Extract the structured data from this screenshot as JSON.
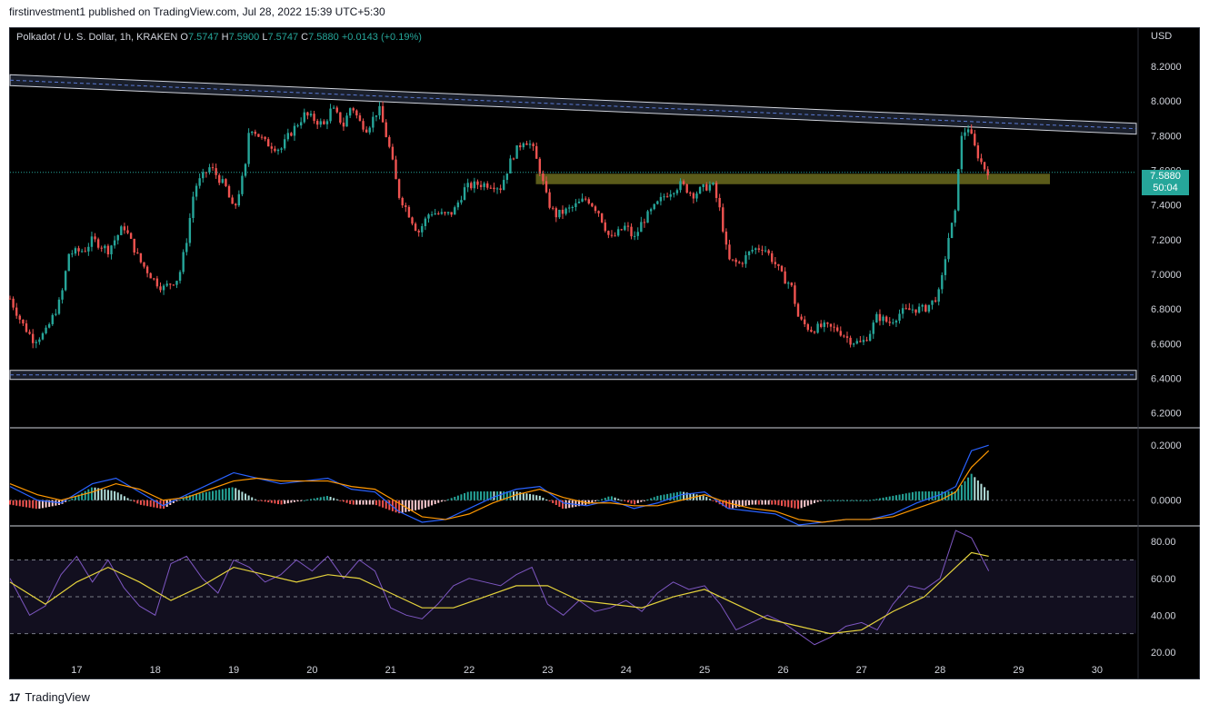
{
  "published": "firstinvestment1 published on TradingView.com, Jul 28, 2022 15:39 UTC+5:30",
  "brand": "TradingView",
  "legend": {
    "symbol": "Polkadot / U. S. Dollar, 1h, KRAKEN",
    "o_label": "O",
    "o": "7.5747",
    "h_label": "H",
    "h": "7.5900",
    "l_label": "L",
    "l": "7.5747",
    "c_label": "C",
    "c": "7.5880",
    "change": "+0.0143 (+0.19%)"
  },
  "currency": "USD",
  "price_tag": {
    "price": "7.5880",
    "countdown": "50:04"
  },
  "colors": {
    "up": "#26a69a",
    "down": "#ef5350",
    "macd": "#2962ff",
    "signal": "#ff9800",
    "rsi": "#7e57c2",
    "rsi_ma": "#e5d33c",
    "zone": "#6b6b1e"
  },
  "chart_data": [
    {
      "type": "candlestick",
      "title": "Polkadot / U. S. Dollar, 1h, KRAKEN",
      "x_ticks": [
        "17",
        "18",
        "19",
        "20",
        "21",
        "22",
        "23",
        "24",
        "25",
        "26",
        "27",
        "28",
        "29",
        "30"
      ],
      "y_ticks": [
        "8.2000",
        "8.0000",
        "7.8000",
        "7.6000",
        "7.4000",
        "7.2000",
        "7.0000",
        "6.8000",
        "6.6000",
        "6.4000",
        "6.2000"
      ],
      "ylim": [
        6.12,
        8.42
      ],
      "xlim": [
        16.15,
        30.5
      ],
      "close_path": [
        [
          16.15,
          6.86
        ],
        [
          16.3,
          6.72
        ],
        [
          16.45,
          6.62
        ],
        [
          16.6,
          6.66
        ],
        [
          16.8,
          6.86
        ],
        [
          16.9,
          7.12
        ],
        [
          17.1,
          7.14
        ],
        [
          17.2,
          7.2
        ],
        [
          17.4,
          7.14
        ],
        [
          17.6,
          7.28
        ],
        [
          17.8,
          7.08
        ],
        [
          17.9,
          7.02
        ],
        [
          18.0,
          6.96
        ],
        [
          18.1,
          6.92
        ],
        [
          18.3,
          6.98
        ],
        [
          18.4,
          7.2
        ],
        [
          18.5,
          7.5
        ],
        [
          18.7,
          7.62
        ],
        [
          18.9,
          7.5
        ],
        [
          19.0,
          7.36
        ],
        [
          19.15,
          7.62
        ],
        [
          19.2,
          7.86
        ],
        [
          19.4,
          7.76
        ],
        [
          19.6,
          7.72
        ],
        [
          19.7,
          7.8
        ],
        [
          19.9,
          7.92
        ],
        [
          20.0,
          7.9
        ],
        [
          20.15,
          7.86
        ],
        [
          20.25,
          7.96
        ],
        [
          20.4,
          7.86
        ],
        [
          20.5,
          7.98
        ],
        [
          20.6,
          7.88
        ],
        [
          20.7,
          7.84
        ],
        [
          20.85,
          7.96
        ],
        [
          21.0,
          7.7
        ],
        [
          21.1,
          7.46
        ],
        [
          21.2,
          7.38
        ],
        [
          21.35,
          7.24
        ],
        [
          21.5,
          7.36
        ],
        [
          21.7,
          7.34
        ],
        [
          21.8,
          7.36
        ],
        [
          21.95,
          7.5
        ],
        [
          22.1,
          7.52
        ],
        [
          22.3,
          7.52
        ],
        [
          22.4,
          7.5
        ],
        [
          22.55,
          7.68
        ],
        [
          22.7,
          7.78
        ],
        [
          22.8,
          7.74
        ],
        [
          22.9,
          7.6
        ],
        [
          23.0,
          7.42
        ],
        [
          23.1,
          7.34
        ],
        [
          23.3,
          7.38
        ],
        [
          23.5,
          7.44
        ],
        [
          23.65,
          7.36
        ],
        [
          23.8,
          7.2
        ],
        [
          24.0,
          7.28
        ],
        [
          24.1,
          7.2
        ],
        [
          24.2,
          7.3
        ],
        [
          24.35,
          7.38
        ],
        [
          24.5,
          7.46
        ],
        [
          24.7,
          7.52
        ],
        [
          24.85,
          7.46
        ],
        [
          25.0,
          7.5
        ],
        [
          25.1,
          7.52
        ],
        [
          25.2,
          7.36
        ],
        [
          25.3,
          7.08
        ],
        [
          25.45,
          7.06
        ],
        [
          25.6,
          7.14
        ],
        [
          25.75,
          7.16
        ],
        [
          25.9,
          7.06
        ],
        [
          26.0,
          6.98
        ],
        [
          26.1,
          6.94
        ],
        [
          26.2,
          6.74
        ],
        [
          26.35,
          6.68
        ],
        [
          26.5,
          6.7
        ],
        [
          26.7,
          6.68
        ],
        [
          26.85,
          6.62
        ],
        [
          27.0,
          6.6
        ],
        [
          27.1,
          6.66
        ],
        [
          27.2,
          6.76
        ],
        [
          27.35,
          6.72
        ],
        [
          27.5,
          6.78
        ],
        [
          27.65,
          6.8
        ],
        [
          27.8,
          6.8
        ],
        [
          27.9,
          6.84
        ],
        [
          28.0,
          6.9
        ],
        [
          28.1,
          7.2
        ],
        [
          28.2,
          7.36
        ],
        [
          28.25,
          7.76
        ],
        [
          28.35,
          7.86
        ],
        [
          28.45,
          7.72
        ],
        [
          28.55,
          7.62
        ],
        [
          28.62,
          7.59
        ]
      ],
      "support_zone": [
        7.52,
        7.58
      ],
      "support_zone_x": [
        22.85,
        29.4
      ],
      "descending_channel": {
        "start": [
          16.15,
          8.12
        ],
        "end": [
          30.5,
          7.84
        ]
      },
      "horizontal_support": 6.42,
      "last_price": 7.588
    },
    {
      "type": "line",
      "indicator": "MACD",
      "y_ticks": [
        "0.2000",
        "0.0000"
      ],
      "ylim": [
        -0.09,
        0.26
      ],
      "series": [
        {
          "x": [
            16.15,
            16.5,
            16.8,
            17.2,
            17.5,
            17.8,
            18.1,
            18.4,
            18.7,
            19.0,
            19.3,
            19.6,
            19.9,
            20.2,
            20.5,
            20.8,
            21.1,
            21.4,
            21.7,
            22.0,
            22.3,
            22.6,
            22.9,
            23.2,
            23.5,
            23.8,
            24.1,
            24.4,
            24.7,
            25.0,
            25.3,
            25.6,
            25.9,
            26.2,
            26.5,
            26.8,
            27.1,
            27.4,
            27.7,
            28.0,
            28.2,
            28.4,
            28.62
          ],
          "values": [
            0.05,
            0.0,
            -0.01,
            0.06,
            0.08,
            0.03,
            -0.02,
            0.02,
            0.06,
            0.1,
            0.08,
            0.06,
            0.07,
            0.08,
            0.04,
            0.03,
            -0.04,
            -0.08,
            -0.07,
            -0.03,
            0.01,
            0.04,
            0.05,
            -0.01,
            -0.02,
            0.0,
            -0.03,
            -0.01,
            0.02,
            0.03,
            -0.03,
            -0.04,
            -0.05,
            -0.09,
            -0.08,
            -0.07,
            -0.07,
            -0.05,
            -0.01,
            0.02,
            0.05,
            0.18,
            0.2
          ]
        },
        {
          "x": [
            16.15,
            16.5,
            16.8,
            17.2,
            17.5,
            17.8,
            18.1,
            18.4,
            18.7,
            19.0,
            19.3,
            19.6,
            19.9,
            20.2,
            20.5,
            20.8,
            21.1,
            21.4,
            21.7,
            22.0,
            22.3,
            22.6,
            22.9,
            23.2,
            23.5,
            23.8,
            24.1,
            24.4,
            24.7,
            25.0,
            25.3,
            25.6,
            25.9,
            26.2,
            26.5,
            26.8,
            27.1,
            27.4,
            27.7,
            28.0,
            28.2,
            28.4,
            28.62
          ],
          "values": [
            0.06,
            0.02,
            0.0,
            0.03,
            0.06,
            0.04,
            0.0,
            0.01,
            0.04,
            0.07,
            0.08,
            0.07,
            0.07,
            0.07,
            0.05,
            0.04,
            -0.01,
            -0.06,
            -0.07,
            -0.05,
            -0.01,
            0.02,
            0.04,
            0.01,
            -0.01,
            -0.01,
            -0.02,
            -0.02,
            0.0,
            0.02,
            -0.01,
            -0.03,
            -0.04,
            -0.07,
            -0.08,
            -0.07,
            -0.07,
            -0.06,
            -0.03,
            0.0,
            0.03,
            0.12,
            0.18
          ]
        }
      ]
    },
    {
      "type": "line",
      "indicator": "RSI",
      "y_ticks": [
        "80.00",
        "60.00",
        "40.00",
        "20.00"
      ],
      "ylim": [
        15,
        88
      ],
      "bands": [
        70,
        50,
        30
      ],
      "series": [
        {
          "x": [
            16.15,
            16.4,
            16.6,
            16.8,
            17.0,
            17.2,
            17.4,
            17.6,
            17.8,
            18.0,
            18.2,
            18.4,
            18.6,
            18.8,
            19.0,
            19.2,
            19.4,
            19.6,
            19.8,
            20.0,
            20.2,
            20.4,
            20.6,
            20.8,
            21.0,
            21.2,
            21.4,
            21.6,
            21.8,
            22.0,
            22.2,
            22.4,
            22.6,
            22.8,
            23.0,
            23.2,
            23.4,
            23.6,
            23.8,
            24.0,
            24.2,
            24.4,
            24.6,
            24.8,
            25.0,
            25.2,
            25.4,
            25.6,
            25.8,
            26.0,
            26.2,
            26.4,
            26.6,
            26.8,
            27.0,
            27.2,
            27.4,
            27.6,
            27.8,
            28.0,
            28.2,
            28.4,
            28.62
          ],
          "values": [
            60,
            40,
            45,
            62,
            72,
            58,
            70,
            55,
            45,
            40,
            68,
            72,
            60,
            52,
            70,
            66,
            58,
            62,
            70,
            64,
            72,
            60,
            70,
            64,
            44,
            40,
            38,
            46,
            56,
            60,
            58,
            56,
            62,
            66,
            46,
            40,
            48,
            42,
            44,
            48,
            42,
            52,
            58,
            54,
            56,
            46,
            32,
            36,
            40,
            36,
            30,
            24,
            28,
            34,
            36,
            32,
            46,
            56,
            54,
            60,
            86,
            82,
            64
          ]
        },
        {
          "x": [
            16.15,
            16.6,
            17.0,
            17.4,
            17.8,
            18.2,
            18.6,
            19.0,
            19.4,
            19.8,
            20.2,
            20.6,
            21.0,
            21.4,
            21.8,
            22.2,
            22.6,
            23.0,
            23.4,
            23.8,
            24.2,
            24.6,
            25.0,
            25.4,
            25.8,
            26.2,
            26.6,
            27.0,
            27.4,
            27.8,
            28.2,
            28.4,
            28.62
          ],
          "values": [
            58,
            46,
            58,
            66,
            58,
            48,
            56,
            66,
            62,
            58,
            62,
            60,
            52,
            44,
            44,
            50,
            56,
            56,
            48,
            46,
            44,
            50,
            54,
            46,
            38,
            34,
            30,
            32,
            42,
            50,
            66,
            74,
            72
          ]
        }
      ]
    }
  ]
}
